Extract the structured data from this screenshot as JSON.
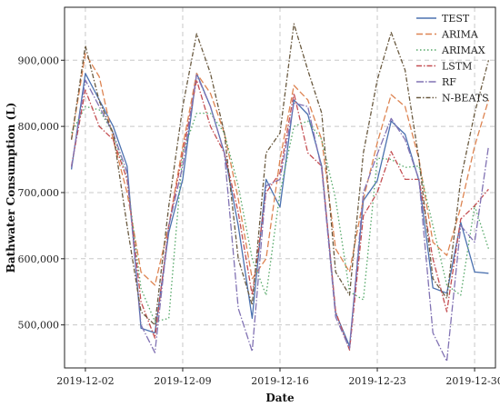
{
  "chart_data": {
    "type": "line",
    "title": "",
    "xlabel": "Date",
    "ylabel": "Bathwater Consumption (L)",
    "x_tick_labels": [
      "2019-12-02",
      "2019-12-09",
      "2019-12-16",
      "2019-12-23",
      "2019-12-30"
    ],
    "x_tick_days": [
      2,
      9,
      16,
      23,
      30
    ],
    "x_days": [
      1,
      2,
      3,
      4,
      5,
      6,
      7,
      8,
      9,
      10,
      11,
      12,
      13,
      14,
      15,
      16,
      17,
      18,
      19,
      20,
      21,
      22,
      23,
      24,
      25,
      26,
      27,
      28,
      29,
      30,
      31
    ],
    "xlim": [
      0.5,
      31.5
    ],
    "y_ticks": [
      500000,
      600000,
      700000,
      800000,
      900000
    ],
    "y_tick_labels": [
      "500,000",
      "600,000",
      "700,000",
      "800,000",
      "900,000"
    ],
    "ylim": [
      435000,
      980000
    ],
    "grid": true,
    "legend_position": "top-right",
    "series": [
      {
        "name": "TEST",
        "color": "#4c72b0",
        "dash": "",
        "values": [
          735000,
          880000,
          840000,
          800000,
          740000,
          495000,
          488000,
          640000,
          720000,
          880000,
          830000,
          760000,
          650000,
          510000,
          720000,
          678000,
          840000,
          818000,
          740000,
          518000,
          468000,
          688000,
          718000,
          808000,
          788000,
          718000,
          556000,
          548000,
          655000,
          580000,
          578000
        ]
      },
      {
        "name": "ARIMA",
        "color": "#dd8452",
        "dash": "7,3",
        "values": [
          780000,
          910000,
          875000,
          780000,
          700000,
          580000,
          560000,
          650000,
          770000,
          880000,
          850000,
          790000,
          690000,
          570000,
          600000,
          750000,
          862000,
          840000,
          780000,
          615000,
          580000,
          690000,
          775000,
          848000,
          830000,
          750000,
          625000,
          605000,
          678000,
          770000,
          840000
        ]
      },
      {
        "name": "ARIMAX",
        "color": "#55a868",
        "dash": "1.5,2.5",
        "values": [
          790000,
          830000,
          825000,
          790000,
          720000,
          555000,
          505000,
          510000,
          760000,
          820000,
          820000,
          790000,
          710000,
          600000,
          545000,
          700000,
          800000,
          808000,
          780000,
          690000,
          550000,
          538000,
          752000,
          750000,
          738000,
          740000,
          650000,
          560000,
          545000,
          680000,
          615000
        ]
      },
      {
        "name": "LSTM",
        "color": "#c44e52",
        "dash": "6,2,1.5,2",
        "values": [
          740000,
          855000,
          800000,
          780000,
          720000,
          535000,
          480000,
          650000,
          760000,
          870000,
          800000,
          760000,
          670000,
          545000,
          700000,
          730000,
          850000,
          760000,
          740000,
          520000,
          462000,
          665000,
          700000,
          762000,
          720000,
          720000,
          600000,
          520000,
          660000,
          680000,
          705000
        ]
      },
      {
        "name": "RF",
        "color": "#8172b3",
        "dash": "8,2,1.5,2",
        "values": [
          738000,
          870000,
          830000,
          790000,
          730000,
          500000,
          458000,
          650000,
          740000,
          878000,
          830000,
          760000,
          525000,
          460000,
          710000,
          720000,
          835000,
          830000,
          735000,
          512000,
          464000,
          700000,
          758000,
          812000,
          780000,
          720000,
          488000,
          445000,
          650000,
          625000,
          770000
        ]
      },
      {
        "name": "N-BEATS",
        "color": "#6a5a40",
        "dash": "5,2,1.5,2",
        "values": [
          780000,
          922000,
          838000,
          790000,
          650000,
          520000,
          500000,
          680000,
          830000,
          940000,
          880000,
          790000,
          600000,
          530000,
          760000,
          790000,
          955000,
          885000,
          820000,
          580000,
          545000,
          760000,
          870000,
          942000,
          885000,
          750000,
          570000,
          540000,
          720000,
          820000,
          900000
        ]
      }
    ]
  }
}
